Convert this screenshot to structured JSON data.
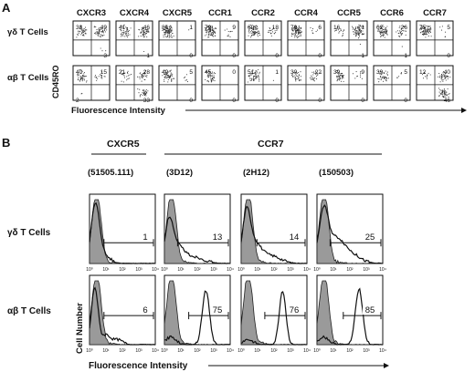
{
  "panel_a": {
    "letter": "A",
    "columns": [
      "CXCR3",
      "CXCR4",
      "CXCR5",
      "CCR1",
      "CCR2",
      "CCR4",
      "CCR5",
      "CCR6",
      "CCR7"
    ],
    "rows": [
      "γδ T Cells",
      "αβ T Cells"
    ],
    "y_label": "CD45RO",
    "x_label": "Fluorescence Intensity",
    "quadrants": [
      [
        [
          38,
          49,
          null,
          3
        ],
        [
          41,
          46,
          null,
          1
        ],
        [
          86,
          1,
          null,
          0
        ],
        [
          79,
          9,
          null,
          0
        ],
        [
          69,
          18,
          null,
          0
        ],
        [
          79,
          6,
          null,
          0
        ],
        [
          16,
          71,
          null,
          1
        ],
        [
          62,
          26,
          null,
          1
        ],
        [
          75,
          5,
          null,
          0
        ]
      ],
      [
        [
          40,
          15,
          2,
          null
        ],
        [
          21,
          28,
          null,
          33
        ],
        [
          49,
          5,
          null,
          0
        ],
        [
          45,
          0,
          null,
          0
        ],
        [
          51,
          1,
          null,
          0
        ],
        [
          30,
          22,
          null,
          0
        ],
        [
          39,
          9,
          null,
          0
        ],
        [
          39,
          5,
          null,
          0
        ],
        [
          12,
          40,
          null,
          46
        ]
      ]
    ]
  },
  "panel_b": {
    "letter": "B",
    "group_labels": [
      "CXCR5",
      "CCR7"
    ],
    "clones": [
      "(51505.111)",
      "(3D12)",
      "(2H12)",
      "(150503)"
    ],
    "rows": [
      "γδ T Cells",
      "αβ T Cells"
    ],
    "y_label": "Cell Number",
    "x_label": "Fluorescence Intensity",
    "tick_labels": [
      "10⁰",
      "10¹",
      "10²",
      "10³",
      "10⁴"
    ],
    "percentages": [
      [
        1,
        13,
        14,
        25
      ],
      [
        6,
        75,
        76,
        85
      ]
    ]
  }
}
